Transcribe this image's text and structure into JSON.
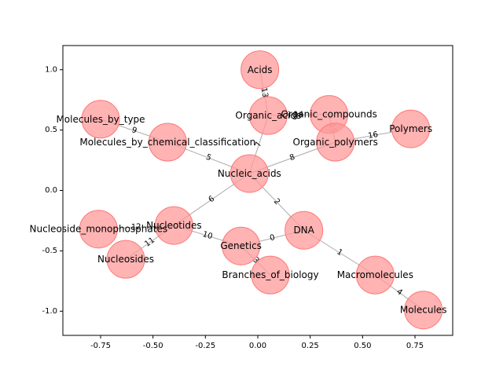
{
  "chart_data": {
    "type": "network",
    "xlim": [
      -0.93,
      0.93
    ],
    "ylim": [
      -1.2,
      1.2
    ],
    "xticks": [
      "-0.75",
      "-0.50",
      "-0.25",
      "0.00",
      "0.25",
      "0.50",
      "0.75"
    ],
    "xtick_values": [
      -0.75,
      -0.5,
      -0.25,
      0.0,
      0.25,
      0.5,
      0.75
    ],
    "yticks": [
      "-1.0",
      "-0.5",
      "0.0",
      "0.5",
      "1.0"
    ],
    "ytick_values": [
      -1.0,
      -0.5,
      0.0,
      0.5,
      1.0
    ],
    "node_color": "#ff9999",
    "node_edge_color": "#ff7777",
    "edge_color": "#aaaaaa",
    "nodes": [
      {
        "id": "acids",
        "label": "Acids",
        "x": 0.01,
        "y": 1.0
      },
      {
        "id": "organic_compounds",
        "label": "Organic_compounds",
        "x": 0.34,
        "y": 0.63
      },
      {
        "id": "organic_acids",
        "label": "Organic_acids",
        "x": 0.05,
        "y": 0.62
      },
      {
        "id": "polymers",
        "label": "Polymers",
        "x": 0.73,
        "y": 0.51
      },
      {
        "id": "molecules_by_type",
        "label": "Molecules_by_type",
        "x": -0.75,
        "y": 0.59
      },
      {
        "id": "molecules_by_chem",
        "label": "Molecules_by_chemical_classification",
        "x": -0.43,
        "y": 0.4
      },
      {
        "id": "organic_polymers",
        "label": "Organic_polymers",
        "x": 0.37,
        "y": 0.4
      },
      {
        "id": "nucleic_acids",
        "label": "Nucleic_acids",
        "x": -0.04,
        "y": 0.14
      },
      {
        "id": "nucleotides",
        "label": "Nucleotides",
        "x": -0.4,
        "y": -0.29
      },
      {
        "id": "nucleoside_monophosphates",
        "label": "Nucleoside_monophosphates",
        "x": -0.76,
        "y": -0.32
      },
      {
        "id": "dna",
        "label": "DNA",
        "x": 0.22,
        "y": -0.33
      },
      {
        "id": "genetics",
        "label": "Genetics",
        "x": -0.08,
        "y": -0.46
      },
      {
        "id": "nucleosides",
        "label": "Nucleosides",
        "x": -0.63,
        "y": -0.57
      },
      {
        "id": "branches_of_biology",
        "label": "Branches_of_biology",
        "x": 0.06,
        "y": -0.7
      },
      {
        "id": "macromolecules",
        "label": "Macromolecules",
        "x": 0.56,
        "y": -0.7
      },
      {
        "id": "molecules",
        "label": "Molecules",
        "x": 0.79,
        "y": -0.99
      }
    ],
    "edges": [
      {
        "source": "dna",
        "target": "genetics",
        "label": "0"
      },
      {
        "source": "dna",
        "target": "macromolecules",
        "label": "1"
      },
      {
        "source": "nucleic_acids",
        "target": "dna",
        "label": "2"
      },
      {
        "source": "genetics",
        "target": "branches_of_biology",
        "label": "3"
      },
      {
        "source": "macromolecules",
        "target": "molecules",
        "label": "4"
      },
      {
        "source": "nucleic_acids",
        "target": "molecules_by_chem",
        "label": "5"
      },
      {
        "source": "nucleic_acids",
        "target": "nucleotides",
        "label": "6"
      },
      {
        "source": "nucleic_acids",
        "target": "organic_acids",
        "label": "7"
      },
      {
        "source": "nucleic_acids",
        "target": "organic_polymers",
        "label": "8"
      },
      {
        "source": "molecules_by_chem",
        "target": "molecules_by_type",
        "label": "9"
      },
      {
        "source": "nucleotides",
        "target": "genetics",
        "label": "10"
      },
      {
        "source": "nucleotides",
        "target": "nucleosides",
        "label": "11"
      },
      {
        "source": "nucleotides",
        "target": "nucleoside_monophosphates",
        "label": "12"
      },
      {
        "source": "organic_acids",
        "target": "acids",
        "label": "13"
      },
      {
        "source": "organic_acids",
        "target": "organic_compounds",
        "label": "14"
      },
      {
        "source": "organic_polymers",
        "target": "organic_compounds",
        "label": "15"
      },
      {
        "source": "organic_polymers",
        "target": "polymers",
        "label": "16"
      }
    ]
  }
}
